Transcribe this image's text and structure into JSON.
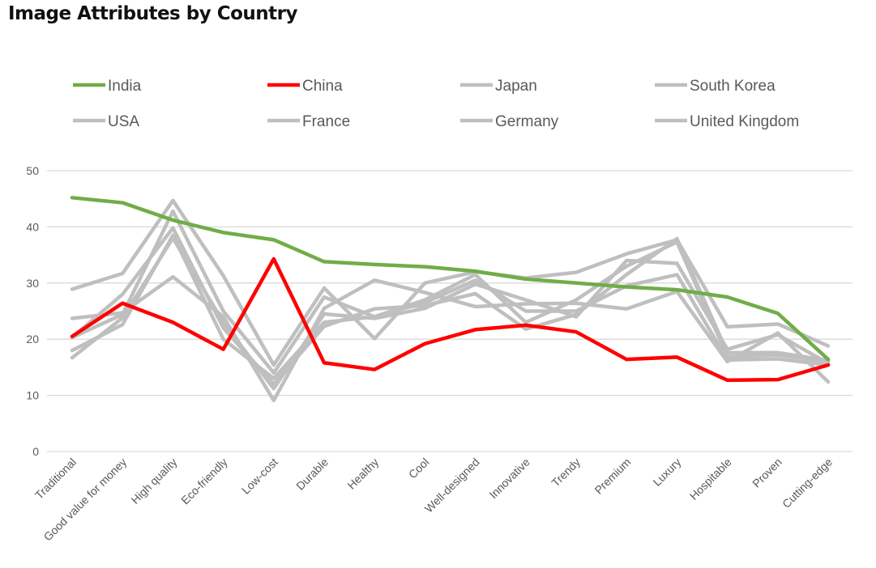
{
  "chart_data": {
    "type": "line",
    "title": "Image Attributes by Country",
    "xlabel": "",
    "ylabel": "",
    "ylim": [
      0,
      50
    ],
    "yticks": [
      0,
      10,
      20,
      30,
      40,
      50
    ],
    "grid": "horizontal",
    "legend_position": "top",
    "categories": [
      "Traditional",
      "Good value for money",
      "High quality",
      "Eco-friendly",
      "Low-cost",
      "Durable",
      "Healthy",
      "Cool",
      "Well-designed",
      "Innovative",
      "Trendy",
      "Premium",
      "Luxury",
      "Hospitable",
      "Proven",
      "Cutting-edge"
    ],
    "series": [
      {
        "name": "India",
        "color": "#70ad47",
        "values": [
          45.2,
          44.3,
          41.2,
          39.0,
          37.7,
          33.8,
          33.3,
          32.9,
          32.1,
          30.7,
          30.0,
          29.3,
          28.8,
          27.5,
          24.6,
          16.4
        ]
      },
      {
        "name": "China",
        "color": "#ff0000",
        "values": [
          20.5,
          26.4,
          23.0,
          18.2,
          34.3,
          15.8,
          14.6,
          19.2,
          21.7,
          22.5,
          21.3,
          16.4,
          16.8,
          12.7,
          12.8,
          15.4
        ]
      },
      {
        "name": "Japan",
        "color": "#bfbfbf",
        "values": [
          28.9,
          31.7,
          44.7,
          31.3,
          15.4,
          29.1,
          20.1,
          30.0,
          32.0,
          30.9,
          31.9,
          35.2,
          37.7,
          22.2,
          22.7,
          18.8
        ]
      },
      {
        "name": "South Korea",
        "color": "#bfbfbf",
        "values": [
          23.7,
          24.7,
          31.1,
          24.0,
          9.1,
          25.5,
          30.5,
          28.3,
          25.8,
          26.3,
          26.4,
          25.4,
          28.5,
          16.0,
          21.1,
          12.4
        ]
      },
      {
        "name": "USA",
        "color": "#bfbfbf",
        "values": [
          20.3,
          28.0,
          39.8,
          22.0,
          12.0,
          22.3,
          25.4,
          26.0,
          28.1,
          21.8,
          24.4,
          31.5,
          37.9,
          17.6,
          17.6,
          16.2
        ]
      },
      {
        "name": "France",
        "color": "#bfbfbf",
        "values": [
          18.0,
          22.6,
          38.5,
          20.0,
          13.0,
          23.0,
          24.0,
          26.5,
          30.5,
          25.0,
          25.0,
          29.5,
          31.5,
          16.3,
          16.5,
          15.4
        ]
      },
      {
        "name": "Germany",
        "color": "#bfbfbf",
        "values": [
          16.7,
          23.8,
          38.0,
          23.0,
          11.2,
          24.5,
          23.7,
          25.5,
          29.8,
          27.0,
          24.0,
          34.0,
          33.5,
          18.2,
          20.8,
          15.7
        ]
      },
      {
        "name": "United Kingdom",
        "color": "#bfbfbf",
        "values": [
          20.3,
          24.4,
          42.8,
          25.0,
          14.0,
          27.5,
          24.0,
          27.0,
          31.5,
          23.0,
          27.0,
          33.0,
          37.3,
          16.9,
          17.2,
          16.0
        ]
      }
    ]
  }
}
